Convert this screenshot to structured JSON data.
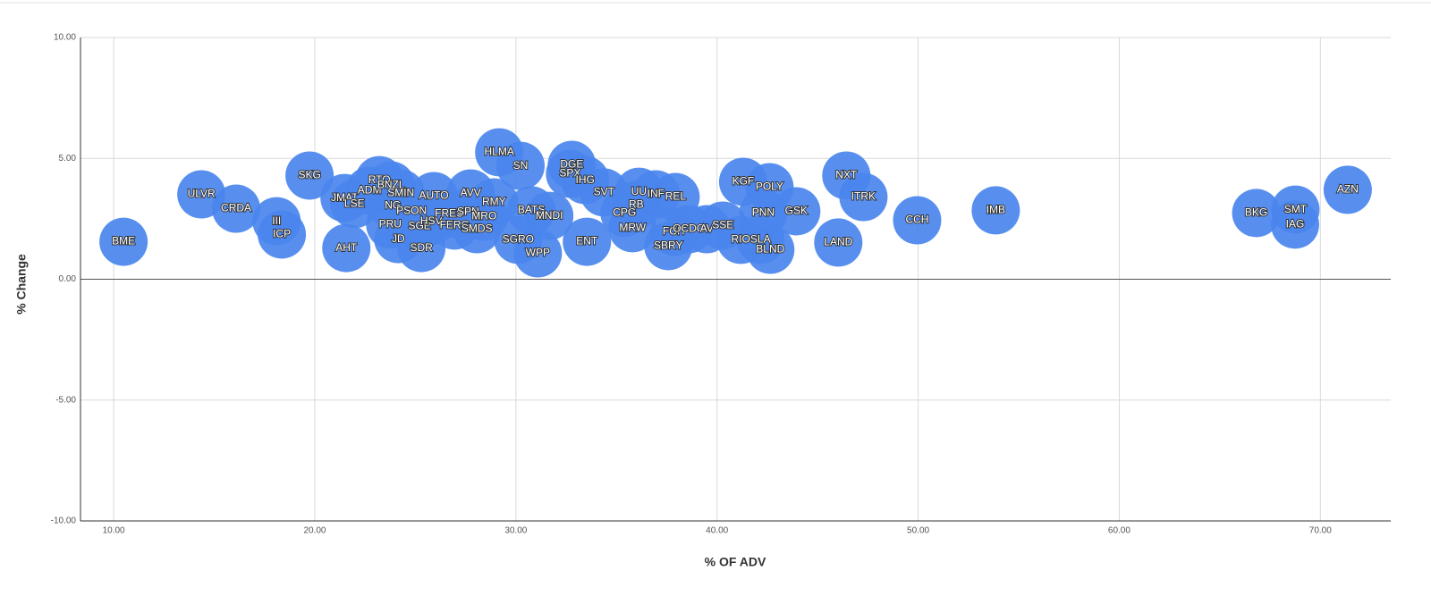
{
  "chart_data": {
    "type": "scatter",
    "x_label": "% OF ADV",
    "y_label": "% Change",
    "labels": [
      "BME",
      "ULVR",
      "CRDA",
      "III",
      "ICP",
      "SKG",
      "AHT",
      "JMAT",
      "LSE",
      "ADM",
      "RTO",
      "BNZL",
      "SMIN",
      "NG",
      "PSON",
      "PRU",
      "JD",
      "SGE",
      "SDR",
      "AUTO",
      "HSV",
      "FRES",
      "SPN",
      "FERG",
      "SMDS",
      "MRO",
      "AVV",
      "RMY",
      "HLMA",
      "SN",
      "BATS",
      "MNDI",
      "SGRO",
      "WPP",
      "DGE",
      "SPX",
      "IHG",
      "SVT",
      "ENT",
      "CPG",
      "UU",
      "RB",
      "INF",
      "REL",
      "MRW",
      "FCIT",
      "OCDO",
      "AV",
      "SSE",
      "SBRY",
      "RIO",
      "SLA",
      "BLND",
      "KGF",
      "POLY",
      "PNN",
      "GSK",
      "LAND",
      "NXT",
      "ITRK",
      "CCH",
      "IMB",
      "BKG",
      "SMT",
      "IAG",
      "AZN"
    ],
    "x": [
      10.49,
      14.36,
      16.09,
      18.1,
      18.36,
      19.74,
      21.57,
      21.48,
      21.97,
      22.72,
      23.21,
      23.79,
      24.28,
      23.88,
      24.81,
      23.75,
      24.15,
      25.21,
      25.3,
      25.92,
      25.79,
      26.68,
      27.62,
      26.95,
      28.06,
      28.42,
      27.75,
      28.91,
      29.17,
      30.23,
      30.77,
      31.66,
      30.11,
      31.09,
      32.78,
      32.69,
      33.44,
      34.38,
      33.53,
      35.4,
      36.12,
      35.98,
      36.96,
      37.94,
      35.8,
      37.89,
      38.6,
      39.49,
      40.29,
      37.58,
      41.18,
      42.16,
      42.65,
      41.3,
      42.61,
      42.3,
      43.94,
      46.03,
      46.43,
      47.28,
      49.95,
      53.86,
      66.81,
      68.76,
      68.74,
      71.36
    ],
    "values": [
      1.55,
      3.51,
      2.92,
      2.4,
      1.85,
      4.29,
      1.29,
      3.36,
      3.11,
      3.66,
      4.1,
      3.88,
      3.55,
      3.03,
      2.81,
      2.26,
      1.66,
      2.18,
      1.29,
      3.44,
      2.4,
      2.7,
      2.77,
      2.22,
      2.07,
      2.59,
      3.55,
      3.18,
      5.25,
      4.69,
      2.85,
      2.62,
      1.63,
      1.07,
      4.73,
      4.36,
      4.1,
      3.59,
      1.55,
      2.74,
      3.62,
      3.07,
      3.51,
      3.4,
      2.11,
      1.96,
      2.07,
      2.07,
      2.22,
      1.37,
      1.63,
      1.63,
      1.22,
      4.03,
      3.81,
      2.74,
      2.81,
      1.52,
      4.29,
      3.4,
      2.44,
      2.85,
      2.74,
      2.88,
      2.26,
      3.7
    ],
    "color": "#4a86ee",
    "xlim": [
      8.35,
      73.5
    ],
    "ylim": [
      -10,
      10
    ],
    "xticks": [
      {
        "value": 10,
        "label": "10.00"
      },
      {
        "value": 20,
        "label": "20.00"
      },
      {
        "value": 30,
        "label": "30.00"
      },
      {
        "value": 40,
        "label": "40.00"
      },
      {
        "value": 50,
        "label": "50.00"
      },
      {
        "value": 60,
        "label": "60.00"
      },
      {
        "value": 70,
        "label": "70.00"
      }
    ],
    "yticks": [
      {
        "value": -10,
        "label": "-10.00"
      },
      {
        "value": -5,
        "label": "-5.00"
      },
      {
        "value": 0,
        "label": "0.00"
      },
      {
        "value": 5,
        "label": "5.00"
      },
      {
        "value": 10,
        "label": "10.00"
      }
    ],
    "grid": true
  }
}
